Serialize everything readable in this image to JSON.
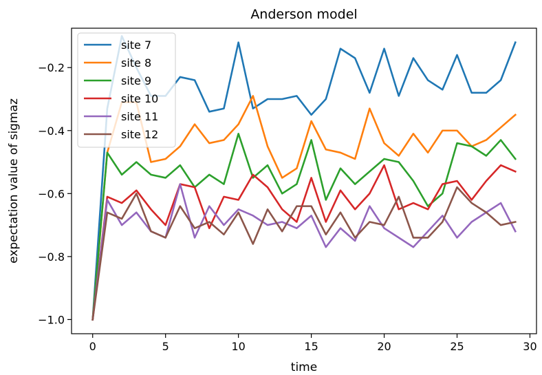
{
  "chart_data": {
    "type": "line",
    "title": "Anderson model",
    "xlabel": "time",
    "ylabel": "expectation value of sigmaz",
    "xlim": [
      -1.45,
      30.45
    ],
    "ylim": [
      -1.045,
      -0.075
    ],
    "xticks": [
      0,
      5,
      10,
      15,
      20,
      25,
      30
    ],
    "xtick_labels": [
      "0",
      "5",
      "10",
      "15",
      "20",
      "25",
      "30"
    ],
    "yticks": [
      -1.0,
      -0.8,
      -0.6,
      -0.4,
      -0.2
    ],
    "ytick_labels": [
      "−1.0",
      "−0.8",
      "−0.6",
      "−0.4",
      "−0.2"
    ],
    "grid": false,
    "legend_position": "upper-left",
    "x": [
      0,
      1,
      2,
      3,
      4,
      5,
      6,
      7,
      8,
      9,
      10,
      11,
      12,
      13,
      14,
      15,
      16,
      17,
      18,
      19,
      20,
      21,
      22,
      23,
      24,
      25,
      26,
      27,
      28,
      29
    ],
    "series": [
      {
        "name": "site 7",
        "color": "#1f77b4",
        "values": [
          -1.0,
          -0.33,
          -0.1,
          -0.2,
          -0.29,
          -0.29,
          -0.23,
          -0.24,
          -0.34,
          -0.33,
          -0.12,
          -0.33,
          -0.3,
          -0.3,
          -0.29,
          -0.35,
          -0.3,
          -0.14,
          -0.17,
          -0.28,
          -0.14,
          -0.29,
          -0.17,
          -0.24,
          -0.27,
          -0.16,
          -0.28,
          -0.28,
          -0.24,
          -0.12
        ]
      },
      {
        "name": "site 8",
        "color": "#ff7f0e",
        "values": [
          -1.0,
          -0.47,
          -0.31,
          -0.31,
          -0.5,
          -0.49,
          -0.45,
          -0.38,
          -0.44,
          -0.43,
          -0.38,
          -0.29,
          -0.45,
          -0.55,
          -0.52,
          -0.37,
          -0.46,
          -0.47,
          -0.49,
          -0.33,
          -0.44,
          -0.48,
          -0.41,
          -0.47,
          -0.4,
          -0.4,
          -0.45,
          -0.43,
          -0.39,
          -0.35
        ]
      },
      {
        "name": "site 9",
        "color": "#2ca02c",
        "values": [
          -1.0,
          -0.47,
          -0.54,
          -0.5,
          -0.54,
          -0.55,
          -0.51,
          -0.58,
          -0.54,
          -0.57,
          -0.41,
          -0.55,
          -0.51,
          -0.6,
          -0.57,
          -0.43,
          -0.62,
          -0.52,
          -0.57,
          -0.53,
          -0.49,
          -0.5,
          -0.56,
          -0.64,
          -0.6,
          -0.44,
          -0.45,
          -0.48,
          -0.43,
          -0.49
        ]
      },
      {
        "name": "site 10",
        "color": "#d62728",
        "values": [
          -1.0,
          -0.61,
          -0.63,
          -0.59,
          -0.65,
          -0.7,
          -0.57,
          -0.58,
          -0.71,
          -0.61,
          -0.62,
          -0.54,
          -0.58,
          -0.65,
          -0.69,
          -0.55,
          -0.69,
          -0.59,
          -0.65,
          -0.6,
          -0.51,
          -0.65,
          -0.63,
          -0.65,
          -0.57,
          -0.56,
          -0.62,
          -0.56,
          -0.51,
          -0.53
        ]
      },
      {
        "name": "site 11",
        "color": "#9467bd",
        "values": [
          -1.0,
          -0.62,
          -0.7,
          -0.66,
          -0.72,
          -0.74,
          -0.57,
          -0.74,
          -0.64,
          -0.7,
          -0.65,
          -0.67,
          -0.7,
          -0.69,
          -0.71,
          -0.67,
          -0.77,
          -0.71,
          -0.75,
          -0.64,
          -0.71,
          -0.74,
          -0.77,
          -0.72,
          -0.67,
          -0.74,
          -0.69,
          -0.66,
          -0.63,
          -0.72
        ]
      },
      {
        "name": "site 12",
        "color": "#8c564b",
        "values": [
          -1.0,
          -0.66,
          -0.68,
          -0.6,
          -0.72,
          -0.74,
          -0.64,
          -0.71,
          -0.69,
          -0.73,
          -0.66,
          -0.76,
          -0.65,
          -0.72,
          -0.64,
          -0.64,
          -0.73,
          -0.66,
          -0.74,
          -0.69,
          -0.7,
          -0.61,
          -0.74,
          -0.74,
          -0.69,
          -0.58,
          -0.63,
          -0.66,
          -0.7,
          -0.69
        ]
      }
    ]
  }
}
